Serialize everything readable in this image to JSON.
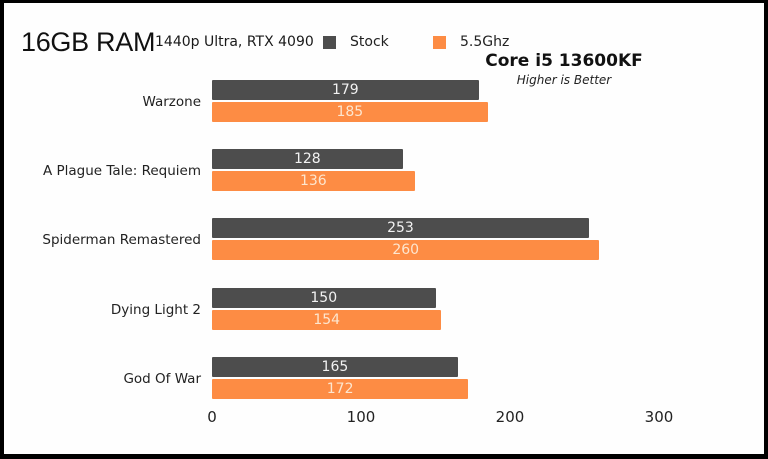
{
  "header": {
    "title": "16GB RAM",
    "subtitle": "1440p Ultra, RTX 4090",
    "cpu": "Core i5 13600KF",
    "note": "Higher is Better"
  },
  "legend": [
    {
      "label": "Stock",
      "color": "#4d4d4d"
    },
    {
      "label": "5.5Ghz",
      "color": "#fd8c44"
    }
  ],
  "axis": {
    "ticks": [
      "0",
      "100",
      "200",
      "300"
    ]
  },
  "chart_data": {
    "type": "bar",
    "orientation": "horizontal",
    "title": "16GB RAM",
    "subtitle": "1440p Ultra, RTX 4090",
    "annotations": [
      "Core i5 13600KF",
      "Higher is Better"
    ],
    "categories": [
      "Warzone",
      "A Plague Tale: Requiem",
      "Spiderman Remastered",
      "Dying Light 2",
      "God Of War"
    ],
    "series": [
      {
        "name": "Stock",
        "color": "#4d4d4d",
        "values": [
          179,
          128,
          253,
          150,
          165
        ]
      },
      {
        "name": "5.5Ghz",
        "color": "#fd8c44",
        "values": [
          185,
          136,
          260,
          154,
          172
        ]
      }
    ],
    "xlabel": "",
    "ylabel": "",
    "xlim": [
      0,
      300
    ],
    "xticks": [
      0,
      100,
      200,
      300
    ],
    "grid": false,
    "legend_position": "top",
    "data_labels": true
  },
  "rows": [
    {
      "label": "Warzone",
      "stock": "179",
      "oc": "185"
    },
    {
      "label": "A Plague Tale: Requiem",
      "stock": "128",
      "oc": "136"
    },
    {
      "label": "Spiderman Remastered",
      "stock": "253",
      "oc": "260"
    },
    {
      "label": "Dying Light 2",
      "stock": "150",
      "oc": "154"
    },
    {
      "label": "God Of War",
      "stock": "165",
      "oc": "172"
    }
  ]
}
